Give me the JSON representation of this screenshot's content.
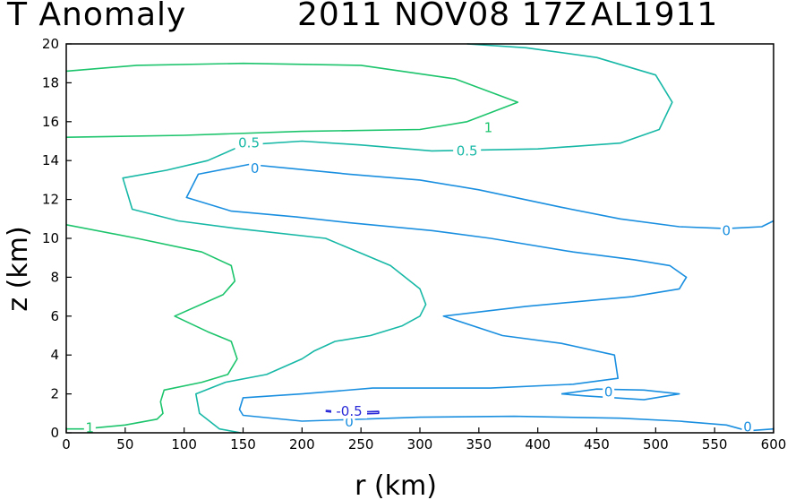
{
  "title": {
    "variable": "T Anomaly",
    "datetime": "2011 NOV08 17Z",
    "storm_id": "AL1911"
  },
  "colors": {
    "level_1": "#1cc46c",
    "level_0_5": "#17b8a6",
    "level_0": "#1a8fe0",
    "level_neg_0_5": "#2a2ad8"
  },
  "chart_data": {
    "type": "contour",
    "title": "T Anomaly   2011 NOV08 17Z  AL1911",
    "xlabel": "r (km)",
    "ylabel": "z (km)",
    "xlim": [
      0,
      600
    ],
    "ylim": [
      0,
      20
    ],
    "x_ticks": [
      0,
      50,
      100,
      150,
      200,
      250,
      300,
      350,
      400,
      450,
      500,
      550,
      600
    ],
    "y_ticks": [
      0,
      2,
      4,
      6,
      8,
      10,
      12,
      14,
      16,
      18,
      20
    ],
    "x_tick_labels": [
      "0",
      "50",
      "100",
      "150",
      "200",
      "250",
      "300",
      "350",
      "400",
      "450",
      "500",
      "550",
      "600"
    ],
    "y_tick_labels": [
      "0",
      "2",
      "4",
      "6",
      "8",
      "10",
      "12",
      "14",
      "16",
      "18",
      "20"
    ],
    "contours": [
      {
        "level": "1",
        "color_key": "level_1",
        "points": [
          [
            0,
            18.6
          ],
          [
            60,
            18.9
          ],
          [
            150,
            19.0
          ],
          [
            250,
            18.9
          ],
          [
            330,
            18.2
          ],
          [
            383,
            17.0
          ],
          [
            340,
            16.0
          ],
          [
            300,
            15.6
          ],
          [
            200,
            15.5
          ],
          [
            100,
            15.3
          ],
          [
            0,
            15.2
          ]
        ]
      },
      {
        "level": "1",
        "color_key": "level_1",
        "points": [
          [
            0,
            10.7
          ],
          [
            60,
            10.0
          ],
          [
            115,
            9.3
          ],
          [
            140,
            8.6
          ],
          [
            143,
            7.8
          ],
          [
            133,
            7.1
          ],
          [
            92,
            6.0
          ],
          [
            120,
            5.2
          ],
          [
            140,
            4.7
          ],
          [
            145,
            3.8
          ],
          [
            137,
            3.0
          ],
          [
            115,
            2.6
          ],
          [
            83,
            2.2
          ],
          [
            80,
            1.6
          ],
          [
            82,
            1.0
          ],
          [
            77,
            0.7
          ],
          [
            50,
            0.4
          ],
          [
            15,
            0.2
          ],
          [
            0,
            0.2
          ]
        ]
      },
      {
        "level": "0.5",
        "color_key": "level_0_5",
        "points": [
          [
            340,
            20
          ],
          [
            390,
            19.8
          ],
          [
            450,
            19.3
          ],
          [
            500,
            18.4
          ],
          [
            514,
            17.0
          ],
          [
            503,
            15.6
          ],
          [
            470,
            14.9
          ],
          [
            400,
            14.6
          ],
          [
            310,
            14.5
          ],
          [
            250,
            14.8
          ],
          [
            200,
            15.0
          ],
          [
            150,
            14.8
          ],
          [
            120,
            14.0
          ],
          [
            85,
            13.5
          ],
          [
            48,
            13.1
          ],
          [
            56,
            11.5
          ],
          [
            95,
            10.9
          ],
          [
            145,
            10.5
          ],
          [
            220,
            10.0
          ],
          [
            275,
            8.6
          ],
          [
            300,
            7.4
          ],
          [
            305,
            6.6
          ],
          [
            300,
            6.0
          ],
          [
            285,
            5.5
          ],
          [
            258,
            5.0
          ],
          [
            228,
            4.7
          ],
          [
            210,
            4.2
          ],
          [
            200,
            3.8
          ],
          [
            170,
            3.0
          ],
          [
            135,
            2.6
          ],
          [
            110,
            2.0
          ],
          [
            113,
            1.0
          ],
          [
            130,
            0.2
          ],
          [
            148,
            0
          ]
        ]
      },
      {
        "level": "0",
        "color_key": "level_0",
        "points": [
          [
            600,
            10.9
          ],
          [
            590,
            10.6
          ],
          [
            560,
            10.5
          ],
          [
            520,
            10.6
          ],
          [
            470,
            11.0
          ],
          [
            420,
            11.6
          ],
          [
            350,
            12.5
          ],
          [
            300,
            13.0
          ],
          [
            240,
            13.3
          ],
          [
            190,
            13.6
          ],
          [
            155,
            13.8
          ],
          [
            112,
            13.3
          ],
          [
            102,
            12.1
          ],
          [
            140,
            11.4
          ],
          [
            195,
            11.1
          ],
          [
            240,
            10.8
          ],
          [
            310,
            10.4
          ],
          [
            360,
            10.0
          ],
          [
            430,
            9.3
          ],
          [
            482,
            8.9
          ],
          [
            512,
            8.6
          ],
          [
            526,
            8.0
          ],
          [
            520,
            7.4
          ],
          [
            480,
            7.0
          ],
          [
            390,
            6.5
          ],
          [
            320,
            6.0
          ],
          [
            370,
            5.0
          ],
          [
            420,
            4.6
          ],
          [
            465,
            4.0
          ],
          [
            468,
            2.8
          ],
          [
            430,
            2.5
          ],
          [
            360,
            2.3
          ],
          [
            260,
            2.3
          ],
          [
            200,
            2.0
          ],
          [
            150,
            1.8
          ],
          [
            147,
            1.2
          ],
          [
            150,
            0.9
          ],
          [
            200,
            0.6
          ],
          [
            300,
            0.8
          ],
          [
            380,
            0.85
          ],
          [
            470,
            0.75
          ],
          [
            520,
            0.6
          ],
          [
            560,
            0.4
          ],
          [
            578,
            0.1
          ],
          [
            600,
            0.2
          ]
        ]
      },
      {
        "level": "0",
        "color_key": "level_0",
        "points": [
          [
            420,
            2.0
          ],
          [
            450,
            2.25
          ],
          [
            490,
            2.2
          ],
          [
            520,
            2.0
          ],
          [
            490,
            1.7
          ],
          [
            440,
            1.9
          ],
          [
            420,
            2.0
          ]
        ]
      },
      {
        "level": "-0.5",
        "color_key": "level_neg_0_5",
        "points": [
          [
            220,
            1.15
          ],
          [
            240,
            1.05
          ],
          [
            265,
            1.1
          ],
          [
            265,
            1.0
          ],
          [
            240,
            0.95
          ],
          [
            220,
            1.1
          ]
        ]
      }
    ],
    "contour_labels": [
      {
        "text": "1",
        "x": 20,
        "y": 0.25,
        "color_key": "level_1"
      },
      {
        "text": "1",
        "x": 358,
        "y": 15.7,
        "color_key": "level_1"
      },
      {
        "text": "0.5",
        "x": 155,
        "y": 14.9,
        "color_key": "level_0_5"
      },
      {
        "text": "0.5",
        "x": 340,
        "y": 14.5,
        "color_key": "level_0_5"
      },
      {
        "text": "0",
        "x": 160,
        "y": 13.6,
        "color_key": "level_0"
      },
      {
        "text": "0",
        "x": 560,
        "y": 10.4,
        "color_key": "level_0"
      },
      {
        "text": "0",
        "x": 460,
        "y": 2.1,
        "color_key": "level_0"
      },
      {
        "text": "0",
        "x": 240,
        "y": 0.55,
        "color_key": "level_0"
      },
      {
        "text": "0",
        "x": 578,
        "y": 0.3,
        "color_key": "level_0"
      },
      {
        "text": "-0.5",
        "x": 240,
        "y": 1.1,
        "color_key": "level_neg_0_5"
      }
    ]
  }
}
